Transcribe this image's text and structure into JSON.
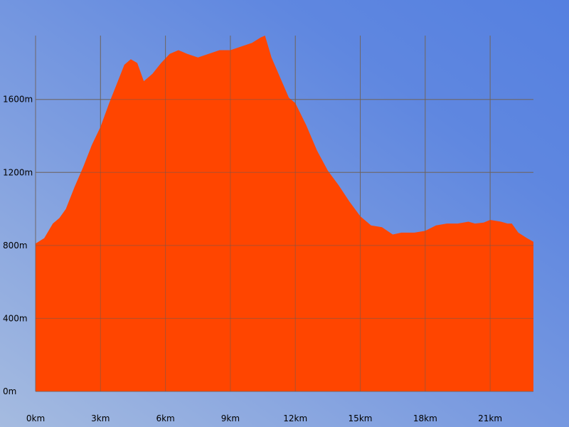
{
  "chart_data": {
    "type": "area",
    "title": "",
    "xlabel": "",
    "ylabel": "",
    "x_unit": "km",
    "y_unit": "m",
    "xlim": [
      0,
      23
    ],
    "ylim": [
      0,
      1950
    ],
    "x_ticks": [
      0,
      3,
      6,
      9,
      12,
      15,
      18,
      21
    ],
    "x_tick_labels": [
      "0km",
      "3km",
      "6km",
      "9km",
      "12km",
      "15km",
      "18km",
      "21km"
    ],
    "y_ticks": [
      0,
      400,
      800,
      1200,
      1600
    ],
    "y_tick_labels": [
      "0m",
      "400m",
      "800m",
      "1200m",
      "1600m"
    ],
    "grid": true,
    "series": [
      {
        "color": "#ff4500",
        "x": [
          0,
          0.4,
          0.8,
          1.1,
          1.4,
          1.8,
          2.2,
          2.6,
          3.0,
          3.4,
          3.8,
          4.1,
          4.4,
          4.7,
          5.0,
          5.4,
          5.8,
          6.2,
          6.6,
          7.0,
          7.5,
          8.0,
          8.5,
          9.0,
          9.5,
          10.0,
          10.4,
          10.6,
          10.9,
          11.3,
          11.7,
          12.0,
          12.5,
          13.0,
          13.5,
          14.0,
          14.5,
          15.0,
          15.5,
          16.0,
          16.5,
          16.9,
          17.5,
          18.0,
          18.5,
          19.0,
          19.5,
          20.0,
          20.3,
          20.7,
          21.0,
          21.5,
          21.8,
          22.0,
          22.3,
          22.7,
          23.0
        ],
        "y": [
          810,
          840,
          920,
          950,
          1000,
          1120,
          1230,
          1350,
          1450,
          1580,
          1700,
          1790,
          1820,
          1800,
          1700,
          1740,
          1800,
          1850,
          1870,
          1850,
          1830,
          1850,
          1870,
          1870,
          1890,
          1910,
          1940,
          1950,
          1830,
          1720,
          1610,
          1580,
          1460,
          1320,
          1210,
          1130,
          1040,
          960,
          910,
          900,
          860,
          870,
          870,
          880,
          910,
          920,
          920,
          930,
          920,
          925,
          940,
          930,
          920,
          920,
          870,
          840,
          820
        ]
      }
    ]
  }
}
